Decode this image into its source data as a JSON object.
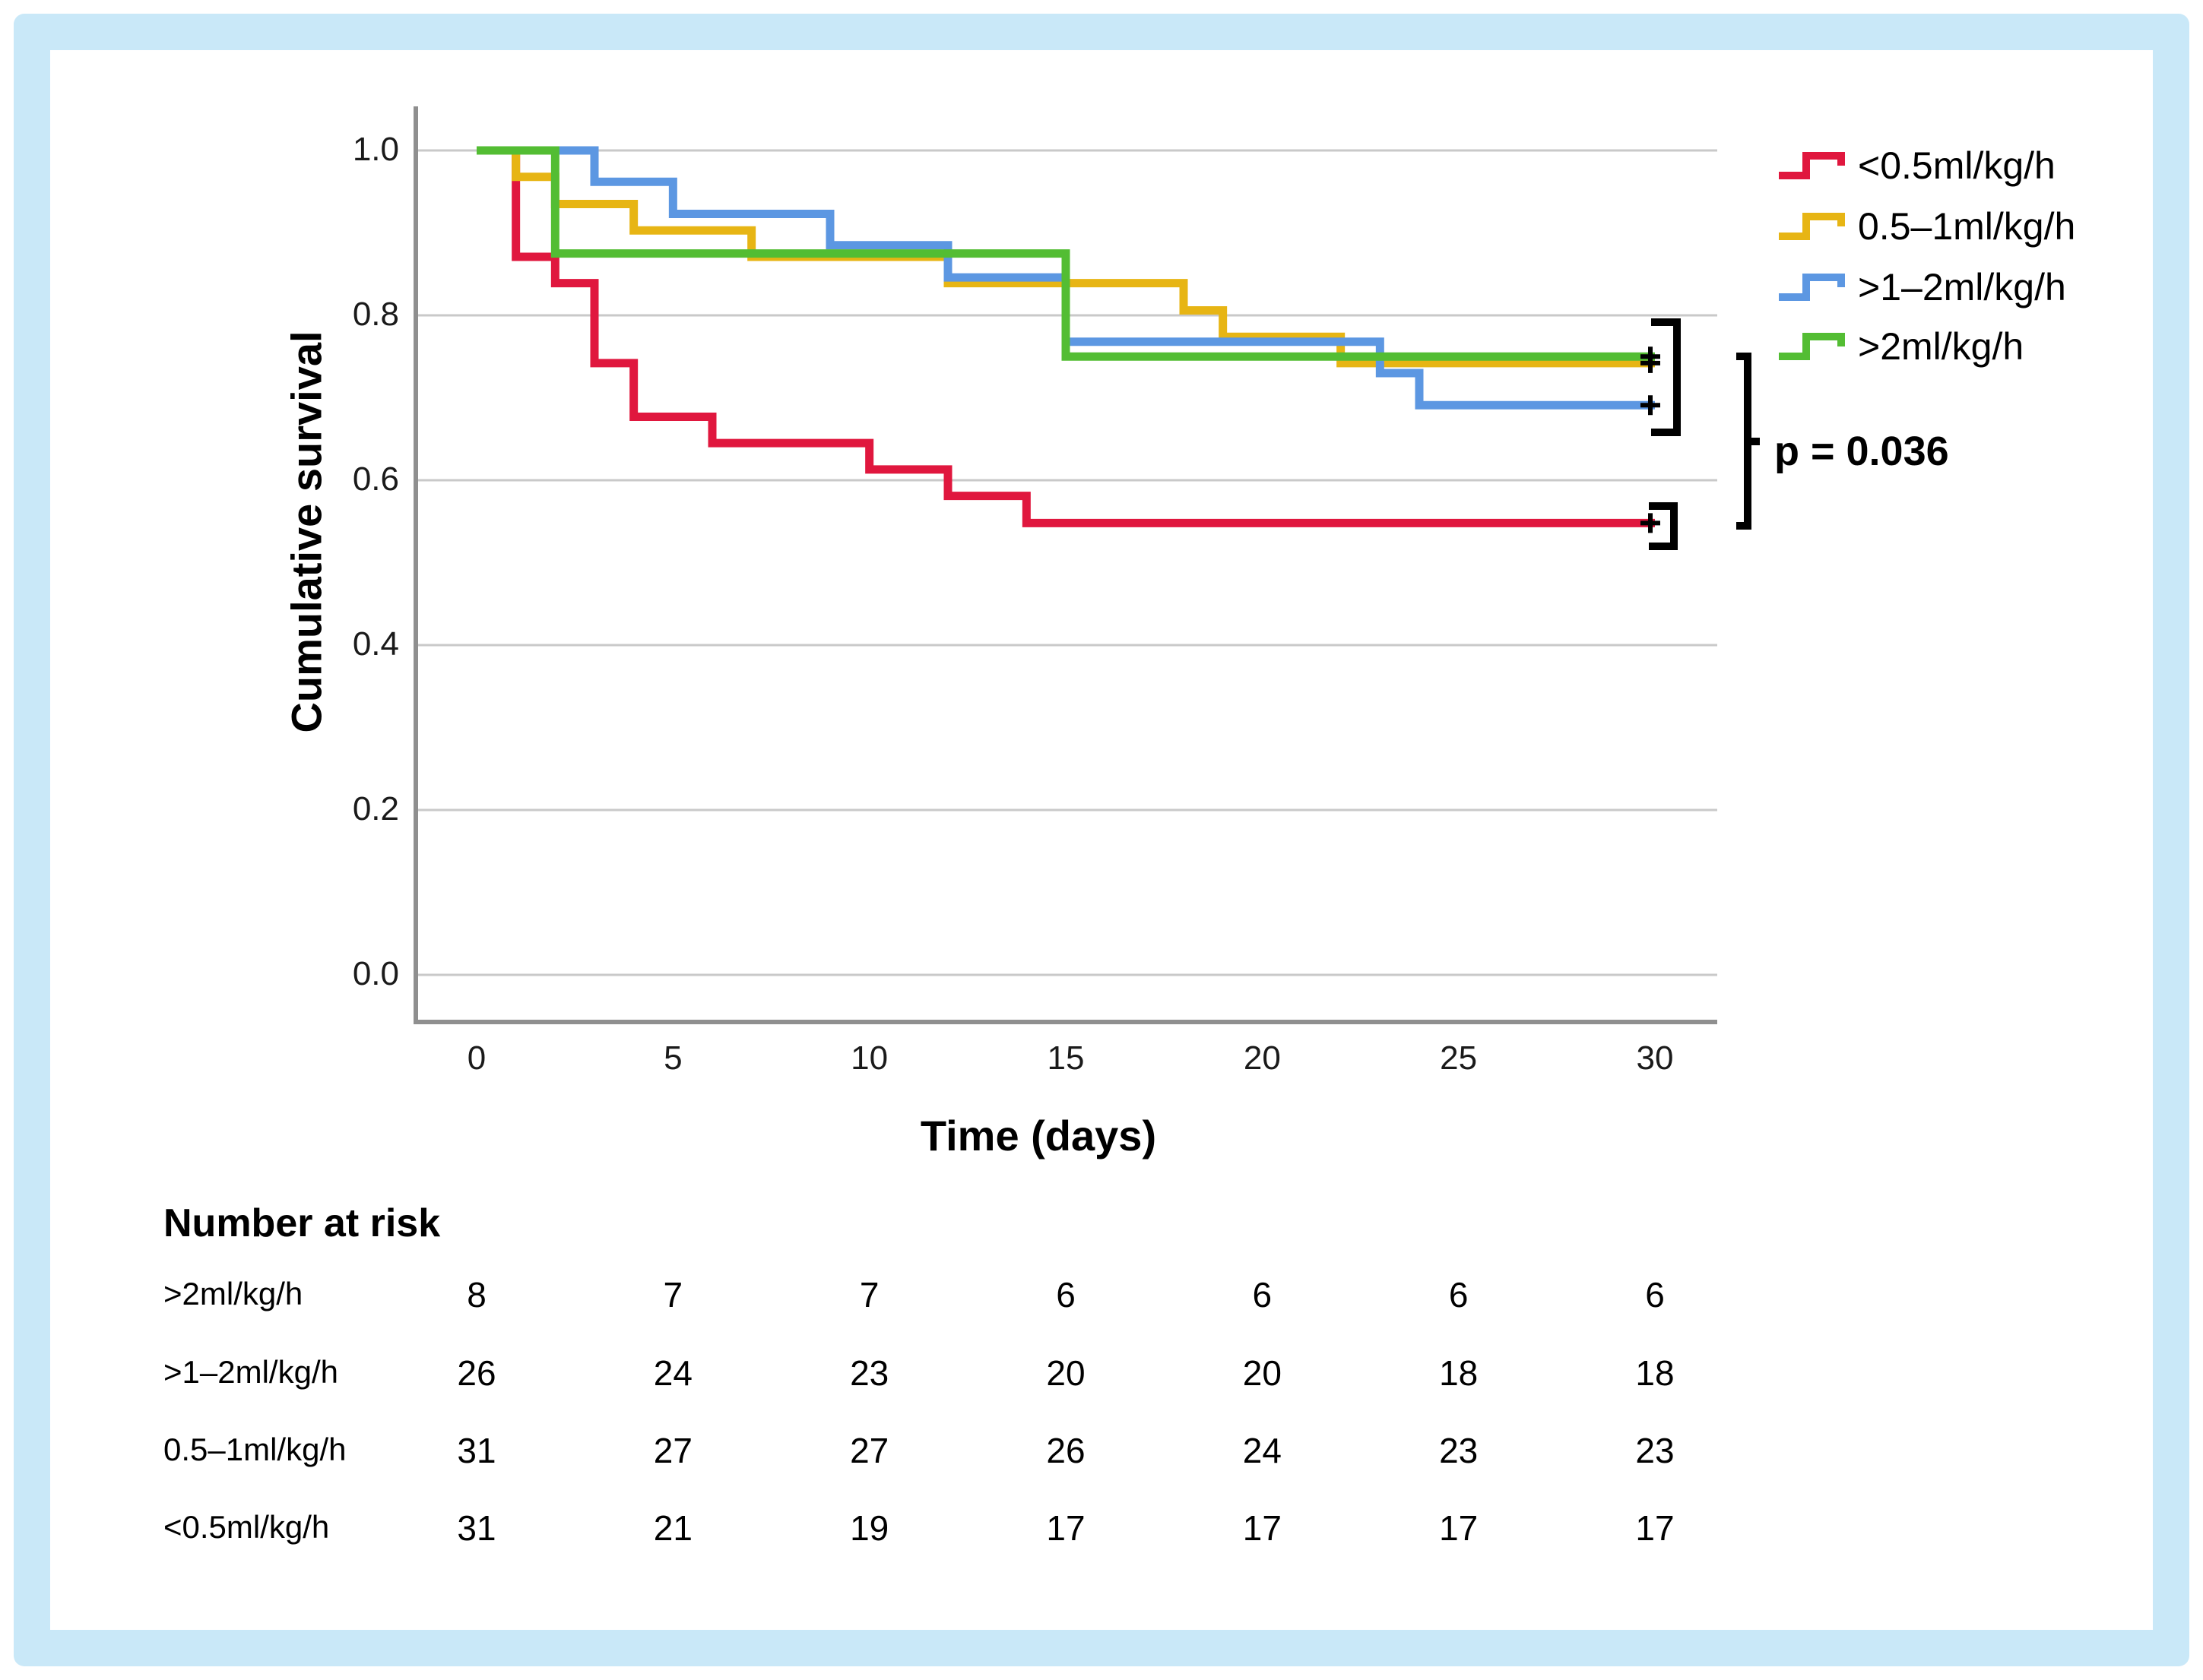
{
  "figure": {
    "background": "#ffffff",
    "frame_color": "#c9e8f8"
  },
  "chart_data": {
    "type": "line",
    "subtype": "kaplan-meier-step-curves",
    "title": "",
    "xlabel": "Time (days)",
    "ylabel": "Cumulative survival",
    "x_ticks": [
      "0",
      "5",
      "10",
      "15",
      "20",
      "25",
      "30"
    ],
    "x_tick_values": [
      0,
      5,
      10,
      15,
      20,
      25,
      30
    ],
    "y_ticks": [
      "1.0",
      "0.8",
      "0.6",
      "0.4",
      "0.2",
      "0.0"
    ],
    "y_tick_values": [
      1.0,
      0.8,
      0.6,
      0.4,
      0.2,
      0.0
    ],
    "xlim": [
      0,
      30
    ],
    "ylim": [
      0.0,
      1.0
    ],
    "grid": true,
    "grid_color": "#c9c9c9",
    "axis_color": "#8f8f8f",
    "legend_position": "top-right",
    "series": [
      {
        "name": "<0.5ml/kg/h",
        "color": "#e0173e",
        "censored_at_day": 30,
        "steps": [
          [
            0,
            1.0
          ],
          [
            1,
            0.871
          ],
          [
            2,
            0.839
          ],
          [
            3,
            0.742
          ],
          [
            4,
            0.677
          ],
          [
            6,
            0.645
          ],
          [
            10,
            0.613
          ],
          [
            12,
            0.581
          ],
          [
            14,
            0.548
          ],
          [
            30,
            0.548
          ]
        ]
      },
      {
        "name": "0.5–1ml/kg/h",
        "color": "#e7b514",
        "censored_at_day": 30,
        "steps": [
          [
            0,
            1.0
          ],
          [
            1,
            0.968
          ],
          [
            2,
            0.935
          ],
          [
            4,
            0.903
          ],
          [
            7,
            0.871
          ],
          [
            12,
            0.839
          ],
          [
            18,
            0.806
          ],
          [
            19,
            0.774
          ],
          [
            22,
            0.742
          ],
          [
            30,
            0.742
          ]
        ]
      },
      {
        "name": ">1–2ml/kg/h",
        "color": "#5c97e2",
        "censored_at_day": 30,
        "steps": [
          [
            0,
            1.0
          ],
          [
            3,
            0.962
          ],
          [
            5,
            0.923
          ],
          [
            9,
            0.885
          ],
          [
            12,
            0.846
          ],
          [
            15,
            0.768
          ],
          [
            23,
            0.73
          ],
          [
            24,
            0.691
          ],
          [
            30,
            0.691
          ]
        ]
      },
      {
        "name": ">2ml/kg/h",
        "color": "#53bd33",
        "censored_at_day": 30,
        "steps": [
          [
            0,
            1.0
          ],
          [
            2,
            0.875
          ],
          [
            15,
            0.75
          ],
          [
            30,
            0.75
          ]
        ]
      }
    ],
    "annotations": {
      "p_label": "p = 0.036"
    }
  },
  "risk_table": {
    "title": "Number at risk",
    "time_points": [
      0,
      5,
      10,
      15,
      20,
      25,
      30
    ],
    "rows": [
      {
        "label": ">2ml/kg/h",
        "counts": [
          8,
          7,
          7,
          6,
          6,
          6,
          6
        ]
      },
      {
        "label": ">1–2ml/kg/h",
        "counts": [
          26,
          24,
          23,
          20,
          20,
          18,
          18
        ]
      },
      {
        "label": "0.5–1ml/kg/h",
        "counts": [
          31,
          27,
          27,
          26,
          24,
          23,
          23
        ]
      },
      {
        "label": "<0.5ml/kg/h",
        "counts": [
          31,
          21,
          19,
          17,
          17,
          17,
          17
        ]
      }
    ]
  }
}
